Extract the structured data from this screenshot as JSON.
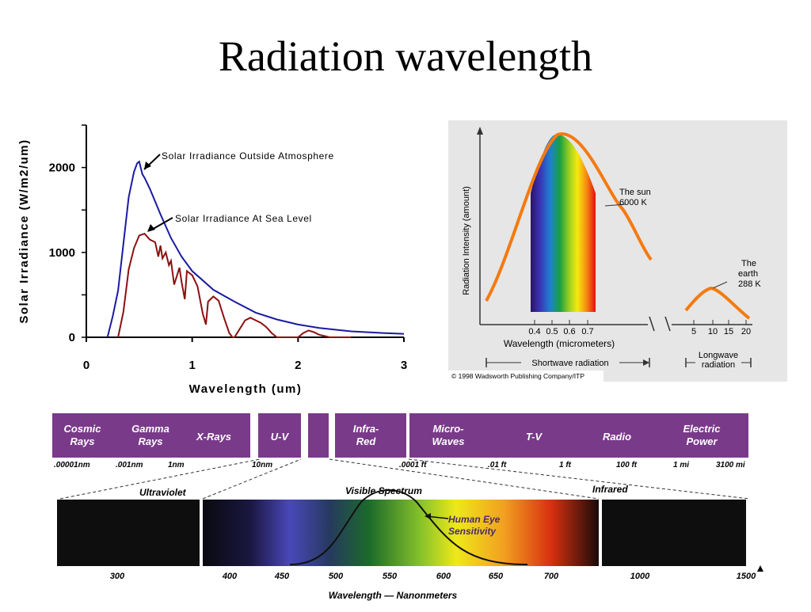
{
  "page_title": "Radiation wavelength",
  "chart_data": [
    {
      "type": "line",
      "ylabel": "Solar Irradiance (W/m2/um)",
      "xlabel": "Wavelength (um)",
      "xlim": [
        0,
        3
      ],
      "ylim": [
        0,
        2500
      ],
      "xticks": [
        "0",
        "1",
        "2",
        "3"
      ],
      "yticks": [
        "0",
        "1000",
        "2000"
      ],
      "series": [
        {
          "name": "Solar Irradiance Outside Atmosphere",
          "color": "#1a1aa0",
          "x": [
            0.2,
            0.25,
            0.3,
            0.35,
            0.4,
            0.45,
            0.48,
            0.5,
            0.53,
            0.55,
            0.6,
            0.7,
            0.8,
            0.9,
            1.0,
            1.2,
            1.4,
            1.6,
            1.8,
            2.0,
            2.2,
            2.5,
            2.8,
            3.0
          ],
          "y": [
            0,
            250,
            550,
            1100,
            1650,
            1950,
            2050,
            2070,
            1920,
            1880,
            1750,
            1450,
            1170,
            950,
            780,
            560,
            420,
            290,
            210,
            150,
            110,
            70,
            50,
            40
          ]
        },
        {
          "name": "Solar Irradiance At Sea Level",
          "color": "#8b1010",
          "x": [
            0.3,
            0.35,
            0.4,
            0.45,
            0.5,
            0.55,
            0.6,
            0.65,
            0.68,
            0.7,
            0.72,
            0.75,
            0.78,
            0.8,
            0.83,
            0.88,
            0.9,
            0.93,
            0.95,
            1.0,
            1.05,
            1.1,
            1.13,
            1.15,
            1.2,
            1.25,
            1.3,
            1.35,
            1.38,
            1.4,
            1.45,
            1.5,
            1.55,
            1.6,
            1.65,
            1.7,
            1.75,
            1.8,
            1.9,
            2.0,
            2.05,
            2.1,
            2.15,
            2.2,
            2.3,
            2.4,
            2.5
          ],
          "y": [
            0,
            300,
            800,
            1050,
            1200,
            1220,
            1150,
            1120,
            950,
            1080,
            930,
            1000,
            850,
            900,
            620,
            820,
            650,
            450,
            780,
            730,
            600,
            280,
            150,
            420,
            480,
            430,
            230,
            50,
            0,
            0,
            100,
            200,
            230,
            200,
            170,
            120,
            50,
            0,
            0,
            0,
            50,
            80,
            60,
            30,
            0,
            0,
            0
          ]
        }
      ],
      "annotations": [
        "Solar Irradiance Outside Atmosphere",
        "Solar Irradiance At Sea Level"
      ]
    },
    {
      "type": "line",
      "ylabel": "Radiation Intensity (amount)",
      "xlabel": "Wavelength (micrometers)",
      "xticks": [
        "0.4",
        "0.5",
        "0.6",
        "0.7"
      ],
      "xticks_right": [
        "5",
        "10",
        "15",
        "20"
      ],
      "series": [
        {
          "name": "The sun 6000 K",
          "label_lines": [
            "The sun",
            "6000 K"
          ],
          "color": "#f58220"
        },
        {
          "name": "The earth 288 K",
          "label_lines": [
            "The",
            "earth",
            "288 K"
          ],
          "color": "#f58220"
        }
      ],
      "ranges": [
        "Shortwave radiation",
        "Longwave radiation"
      ],
      "ranges_lines": [
        [
          "Shortwave radiation"
        ],
        [
          "Longwave",
          "radiation"
        ]
      ],
      "copyright": "© 1998 Wadsworth Publishing Company/ITP"
    },
    {
      "type": "diagram",
      "bands": [
        "Cosmic Rays",
        "Gamma Rays",
        "X-Rays",
        "U-V",
        "",
        "Infra- Red",
        "Micro- Waves",
        "T-V",
        "Radio",
        "Electric Power"
      ],
      "bands_lines": [
        [
          "Cosmic",
          "Rays"
        ],
        [
          "Gamma",
          "Rays"
        ],
        [
          "X-Rays"
        ],
        [
          "U-V"
        ],
        [],
        [
          "Infra-",
          "Red"
        ],
        [
          "Micro-",
          "Waves"
        ],
        [
          "T-V"
        ],
        [
          "Radio"
        ],
        [
          "Electric",
          "Power"
        ]
      ],
      "scale_labels": [
        ".00001nm",
        ".001nm",
        "1nm",
        "10nm",
        ".0001 ft",
        ".01 ft",
        "1 ft",
        "100 ft",
        "1 mi",
        "3100 mi"
      ],
      "sections": [
        "Ultraviolet",
        "Visible Spectrum",
        "Infrared"
      ],
      "curve_label": "Human Eye Sensitivity",
      "curve_label_lines": [
        "Human Eye",
        "Sensitivity"
      ],
      "nm_ticks": [
        "300",
        "400",
        "450",
        "500",
        "550",
        "600",
        "650",
        "700",
        "1000",
        "1500"
      ],
      "xlabel": "Wavelength — Nanonmeters"
    }
  ]
}
